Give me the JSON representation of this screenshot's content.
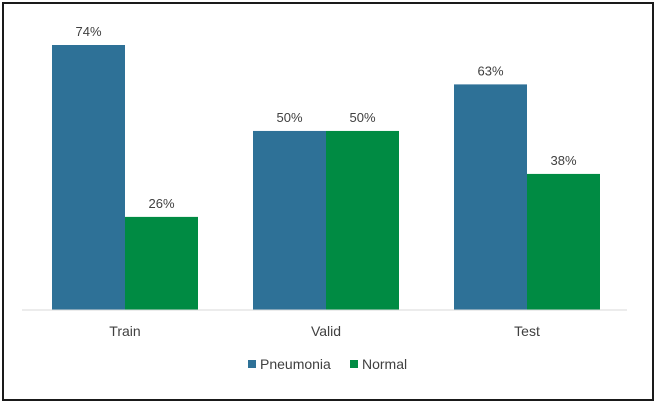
{
  "chart_data": {
    "type": "bar",
    "categories": [
      "Train",
      "Valid",
      "Test"
    ],
    "series": [
      {
        "name": "Pneumonia",
        "values": [
          74,
          50,
          63
        ],
        "labels": [
          "74%",
          "50%",
          "63%"
        ],
        "color": "#2e7197"
      },
      {
        "name": "Normal",
        "values": [
          26,
          50,
          38
        ],
        "labels": [
          "26%",
          "50%",
          "38%"
        ],
        "color": "#008b43"
      }
    ],
    "ylim": [
      0,
      80
    ],
    "grid": false,
    "legend": "bottom",
    "axis_color": "#d9d9d9"
  }
}
